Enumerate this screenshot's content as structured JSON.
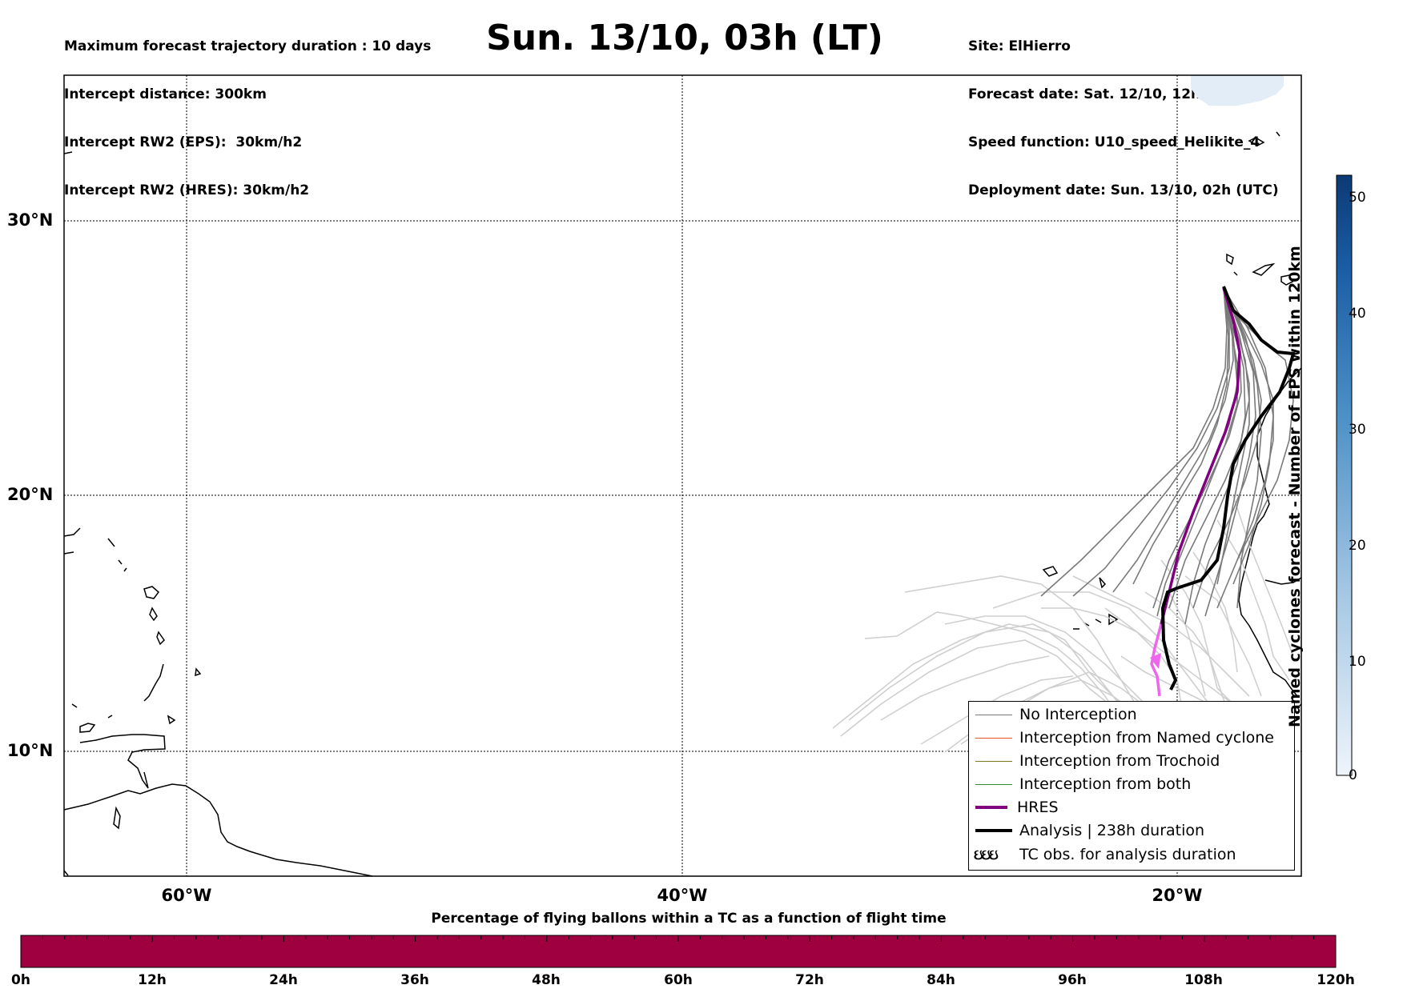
{
  "header": {
    "left_lines": [
      "Maximum forecast trajectory duration : 10 days",
      "Intercept distance: 300km",
      "Intercept RW2 (EPS):  30km/h2",
      "Intercept RW2 (HRES): 30km/h2"
    ],
    "title": "Sun. 13/10, 03h (LT)",
    "right_lines": [
      "Site: ElHierro",
      "Forecast date: Sat. 12/10, 12h (UTC)",
      "Speed function: U10_speed_Helikite_4",
      "Deployment date: Sun. 13/10, 02h (UTC)"
    ]
  },
  "map": {
    "lat_labels": [
      "30°N",
      "20°N",
      "10°N"
    ],
    "lon_labels": [
      "60°W",
      "40°W",
      "20°W"
    ]
  },
  "legend": {
    "items": [
      {
        "label": "No Interception",
        "color": "#777777"
      },
      {
        "label": "Interception from Named cyclone",
        "color": "#e8501e"
      },
      {
        "label": "Interception from Trochoid",
        "color": "#7a7a1a"
      },
      {
        "label": "Interception from both",
        "color": "#2e8b2e"
      },
      {
        "label": "HRES",
        "color": "#800080"
      },
      {
        "label": "Analysis | 238h duration",
        "color": "#000000"
      },
      {
        "label": "TC obs. for analysis duration",
        "symbol": "ઇઇઇ"
      }
    ]
  },
  "colorbar": {
    "title": "Named cyclones forecast - Number of EPS within 120km",
    "ticks": [
      "50",
      "40",
      "30",
      "20",
      "10",
      "0"
    ],
    "range": [
      0,
      52
    ]
  },
  "percent_bar": {
    "title": "Percentage of flying ballons within a TC as a function of flight time",
    "ticks": [
      "0h",
      "12h",
      "24h",
      "36h",
      "48h",
      "60h",
      "72h",
      "84h",
      "96h",
      "108h",
      "120h"
    ],
    "color": "#9e0040"
  }
}
